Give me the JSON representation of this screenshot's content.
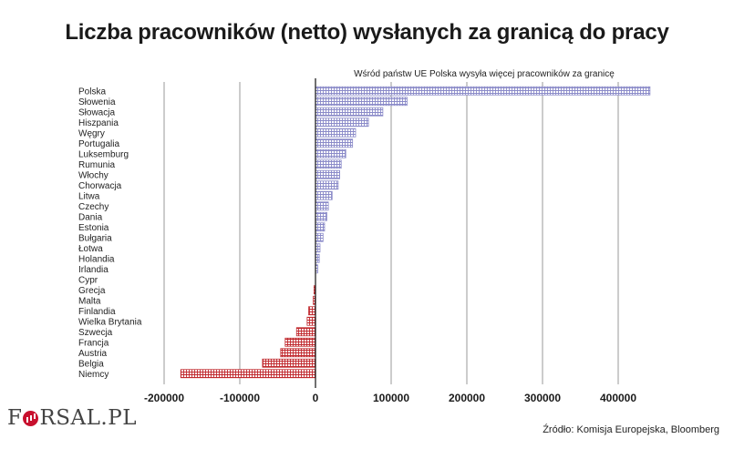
{
  "title": "Liczba pracowników (netto) wysłanych za granicą do pracy",
  "logo": {
    "part1": "F",
    "part2": "RSAL.PL"
  },
  "source": "Źródło: Komisja Europejska, Bloomberg",
  "colors": {
    "positive": "#8a8ac8",
    "negative": "#c0282d",
    "grid": "#9a9a9a",
    "axis": "#111111"
  },
  "chart_data": {
    "type": "bar",
    "orientation": "horizontal",
    "title": "Liczba pracowników (netto) wysłanych za granicą do pracy",
    "subtitle": "Wśród państw UE Polska wysyła więcej pracowników za granicę",
    "xlim": [
      -200000,
      450000
    ],
    "x_ticks": [
      -200000,
      -100000,
      0,
      100000,
      200000,
      300000,
      400000
    ],
    "x_tick_labels": [
      "-200000",
      "-100000",
      "0",
      "100000",
      "200000",
      "300000",
      "400000"
    ],
    "grid": true,
    "categories": [
      "Polska",
      "Słowenia",
      "Słowacja",
      "Hiszpania",
      "Węgry",
      "Portugalia",
      "Luksemburg",
      "Rumunia",
      "Włochy",
      "Chorwacja",
      "Litwa",
      "Czechy",
      "Dania",
      "Estonia",
      "Bułgaria",
      "Łotwa",
      "Holandia",
      "Irlandia",
      "Cypr",
      "Grecja",
      "Malta",
      "Finlandia",
      "Wielka Brytania",
      "Szwecja",
      "Francja",
      "Austria",
      "Belgia",
      "Niemcy"
    ],
    "values": [
      442000,
      121000,
      89000,
      70000,
      53000,
      49000,
      40000,
      34000,
      32000,
      30000,
      22000,
      17000,
      15000,
      12000,
      10000,
      6000,
      5000,
      3000,
      0,
      -2000,
      -3000,
      -9000,
      -11000,
      -25000,
      -40000,
      -46000,
      -70000,
      -178000
    ]
  }
}
